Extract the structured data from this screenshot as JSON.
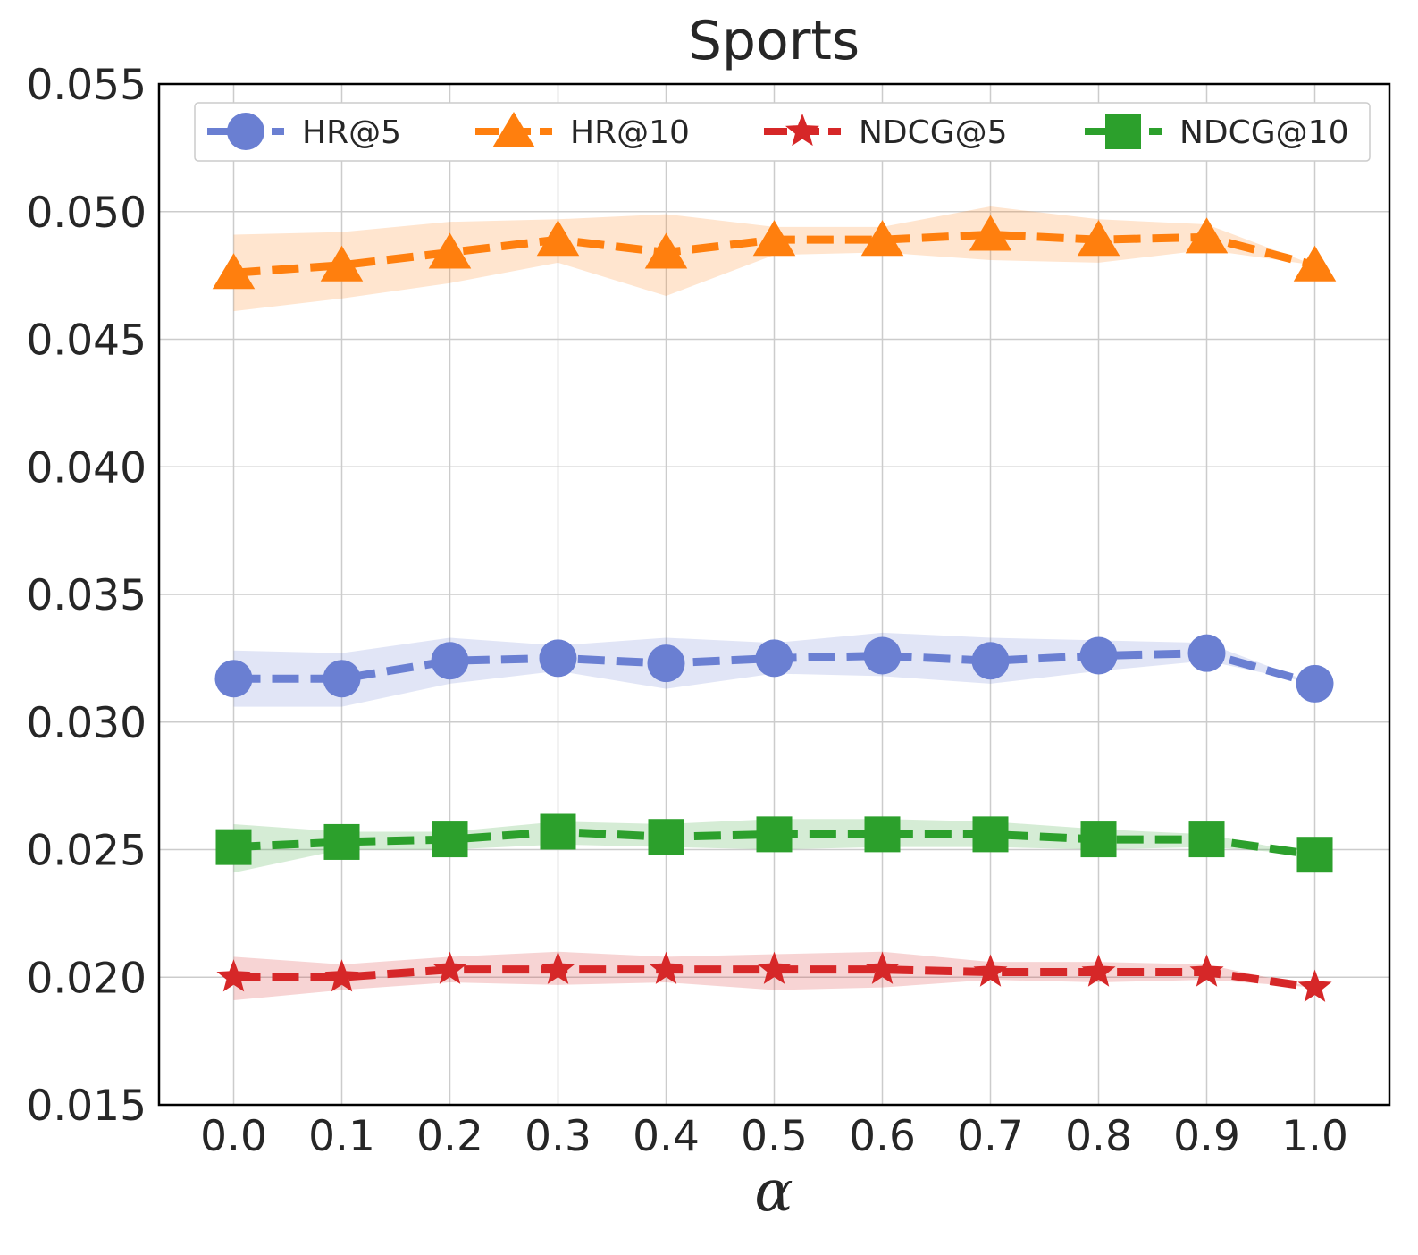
{
  "chart_data": {
    "type": "line",
    "title": "Sports",
    "xlabel": "α",
    "ylabel": "",
    "x": [
      0.0,
      0.1,
      0.2,
      0.3,
      0.4,
      0.5,
      0.6,
      0.7,
      0.8,
      0.9,
      1.0
    ],
    "x_tick_labels": [
      "0.0",
      "0.1",
      "0.2",
      "0.3",
      "0.4",
      "0.5",
      "0.6",
      "0.7",
      "0.8",
      "0.9",
      "1.0"
    ],
    "y_ticks": [
      0.015,
      0.02,
      0.025,
      0.03,
      0.035,
      0.04,
      0.045,
      0.05,
      0.055
    ],
    "y_tick_labels": [
      "0.015",
      "0.020",
      "0.025",
      "0.030",
      "0.035",
      "0.040",
      "0.045",
      "0.050",
      "0.055"
    ],
    "ylim": [
      0.015,
      0.055
    ],
    "xlim": [
      -0.069,
      1.069
    ],
    "grid": true,
    "legend_position": "top",
    "series": [
      {
        "name": "HR@5",
        "color": "#6a7fd2",
        "marker": "circle",
        "values": [
          0.0317,
          0.0317,
          0.0324,
          0.0325,
          0.0323,
          0.0325,
          0.0326,
          0.0324,
          0.0326,
          0.0327,
          0.0315
        ],
        "lower": [
          0.0306,
          0.0306,
          0.0315,
          0.032,
          0.0313,
          0.0319,
          0.0318,
          0.0315,
          0.032,
          0.0324,
          0.0315
        ],
        "upper": [
          0.0328,
          0.0327,
          0.0333,
          0.033,
          0.0333,
          0.0331,
          0.0335,
          0.0333,
          0.0332,
          0.0331,
          0.0315
        ]
      },
      {
        "name": "HR@10",
        "color": "#ff7f0e",
        "marker": "triangle",
        "values": [
          0.0476,
          0.0479,
          0.0484,
          0.0489,
          0.0484,
          0.0489,
          0.0489,
          0.0491,
          0.0489,
          0.049,
          0.0479
        ],
        "lower": [
          0.0461,
          0.0466,
          0.0472,
          0.048,
          0.0467,
          0.0483,
          0.0484,
          0.0481,
          0.048,
          0.0485,
          0.0479
        ],
        "upper": [
          0.0491,
          0.0492,
          0.0496,
          0.0497,
          0.0499,
          0.0494,
          0.0494,
          0.0502,
          0.0497,
          0.0495,
          0.0479
        ]
      },
      {
        "name": "NDCG@5",
        "color": "#d62728",
        "marker": "star",
        "values": [
          0.02,
          0.02,
          0.0203,
          0.0203,
          0.0203,
          0.0203,
          0.0203,
          0.0202,
          0.0202,
          0.0202,
          0.0196
        ],
        "lower": [
          0.0191,
          0.0195,
          0.0198,
          0.0197,
          0.0198,
          0.0195,
          0.0196,
          0.0199,
          0.0198,
          0.0199,
          0.0196
        ],
        "upper": [
          0.0208,
          0.0205,
          0.0208,
          0.021,
          0.0208,
          0.0209,
          0.021,
          0.0206,
          0.0206,
          0.0205,
          0.0196
        ]
      },
      {
        "name": "NDCG@10",
        "color": "#2ca02c",
        "marker": "square",
        "values": [
          0.0251,
          0.0253,
          0.0254,
          0.0257,
          0.0255,
          0.0256,
          0.0256,
          0.0256,
          0.0254,
          0.0254,
          0.0248
        ],
        "lower": [
          0.0241,
          0.025,
          0.025,
          0.0252,
          0.0251,
          0.025,
          0.0251,
          0.0251,
          0.025,
          0.0251,
          0.0248
        ],
        "upper": [
          0.026,
          0.0257,
          0.0257,
          0.0261,
          0.026,
          0.0262,
          0.0262,
          0.0261,
          0.0258,
          0.0256,
          0.0248
        ]
      }
    ]
  }
}
